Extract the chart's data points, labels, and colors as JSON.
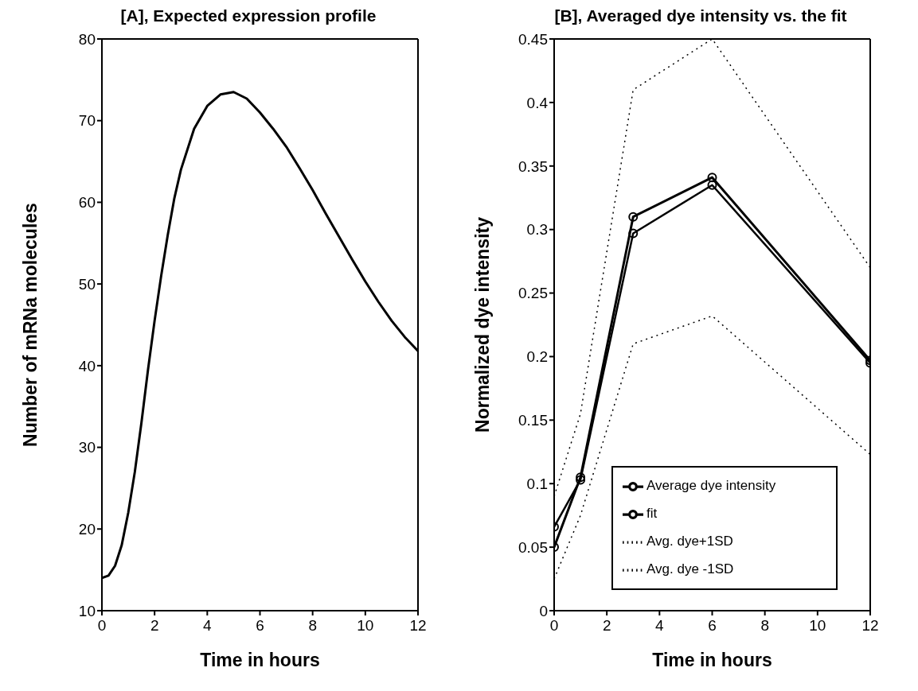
{
  "chart_data": [
    {
      "type": "line",
      "title": "[A], Expected expression profile",
      "xlabel": "Time in hours",
      "ylabel": "Number of mRNa molecules",
      "x": [
        0,
        0.25,
        0.5,
        0.75,
        1,
        1.25,
        1.5,
        1.75,
        2,
        2.25,
        2.5,
        2.75,
        3,
        3.5,
        4,
        4.5,
        5,
        5.5,
        6,
        6.5,
        7,
        7.5,
        8,
        8.5,
        9,
        9.5,
        10,
        10.5,
        11,
        11.5,
        12
      ],
      "series": [
        {
          "color": "#000000",
          "values": [
            14,
            14.3,
            15.5,
            18,
            22,
            27,
            33,
            39.5,
            45.5,
            51,
            56,
            60.5,
            64,
            69,
            71.8,
            73.2,
            73.5,
            72.7,
            71,
            69,
            66.8,
            64.2,
            61.5,
            58.6,
            55.8,
            53,
            50.3,
            47.8,
            45.5,
            43.5,
            41.8
          ]
        }
      ],
      "xlim": [
        0,
        12
      ],
      "xticks": [
        0,
        2,
        4,
        6,
        8,
        10,
        12
      ],
      "ylim": [
        10,
        80
      ],
      "yticks": [
        10,
        20,
        30,
        40,
        50,
        60,
        70,
        80
      ],
      "grid": false,
      "legend": false,
      "marker": "none",
      "line_style": "solid"
    },
    {
      "type": "line",
      "title": "[B], Averaged dye intensity vs. the fit",
      "xlabel": "Time in hours",
      "ylabel": "Normalized dye intensity",
      "x": [
        0,
        1,
        3,
        6,
        12
      ],
      "series": [
        {
          "name": "Average dye intensity",
          "color": "#000000",
          "values": [
            0.05,
            0.105,
            0.31,
            0.341,
            0.197
          ],
          "marker": "circle",
          "line_style": "solid"
        },
        {
          "name": "fit",
          "color": "#000000",
          "values": [
            0.066,
            0.103,
            0.297,
            0.335,
            0.195
          ],
          "marker": "circle",
          "line_style": "solid"
        },
        {
          "name": "Avg. dye+1SD",
          "color": "#000000",
          "values": [
            0.09,
            0.155,
            0.41,
            0.45,
            0.27
          ],
          "marker": "none",
          "line_style": "dotted"
        },
        {
          "name": "Avg. dye -1SD",
          "color": "#000000",
          "values": [
            0.025,
            0.075,
            0.21,
            0.232,
            0.123
          ],
          "marker": "none",
          "line_style": "dotted"
        }
      ],
      "xlim": [
        0,
        12
      ],
      "xticks": [
        0,
        2,
        4,
        6,
        8,
        10,
        12
      ],
      "ylim": [
        0,
        0.45
      ],
      "yticks": [
        0,
        0.05,
        0.1,
        0.15,
        0.2,
        0.25,
        0.3,
        0.35,
        0.4,
        0.45
      ],
      "grid": false,
      "legend": "bottom right"
    }
  ]
}
